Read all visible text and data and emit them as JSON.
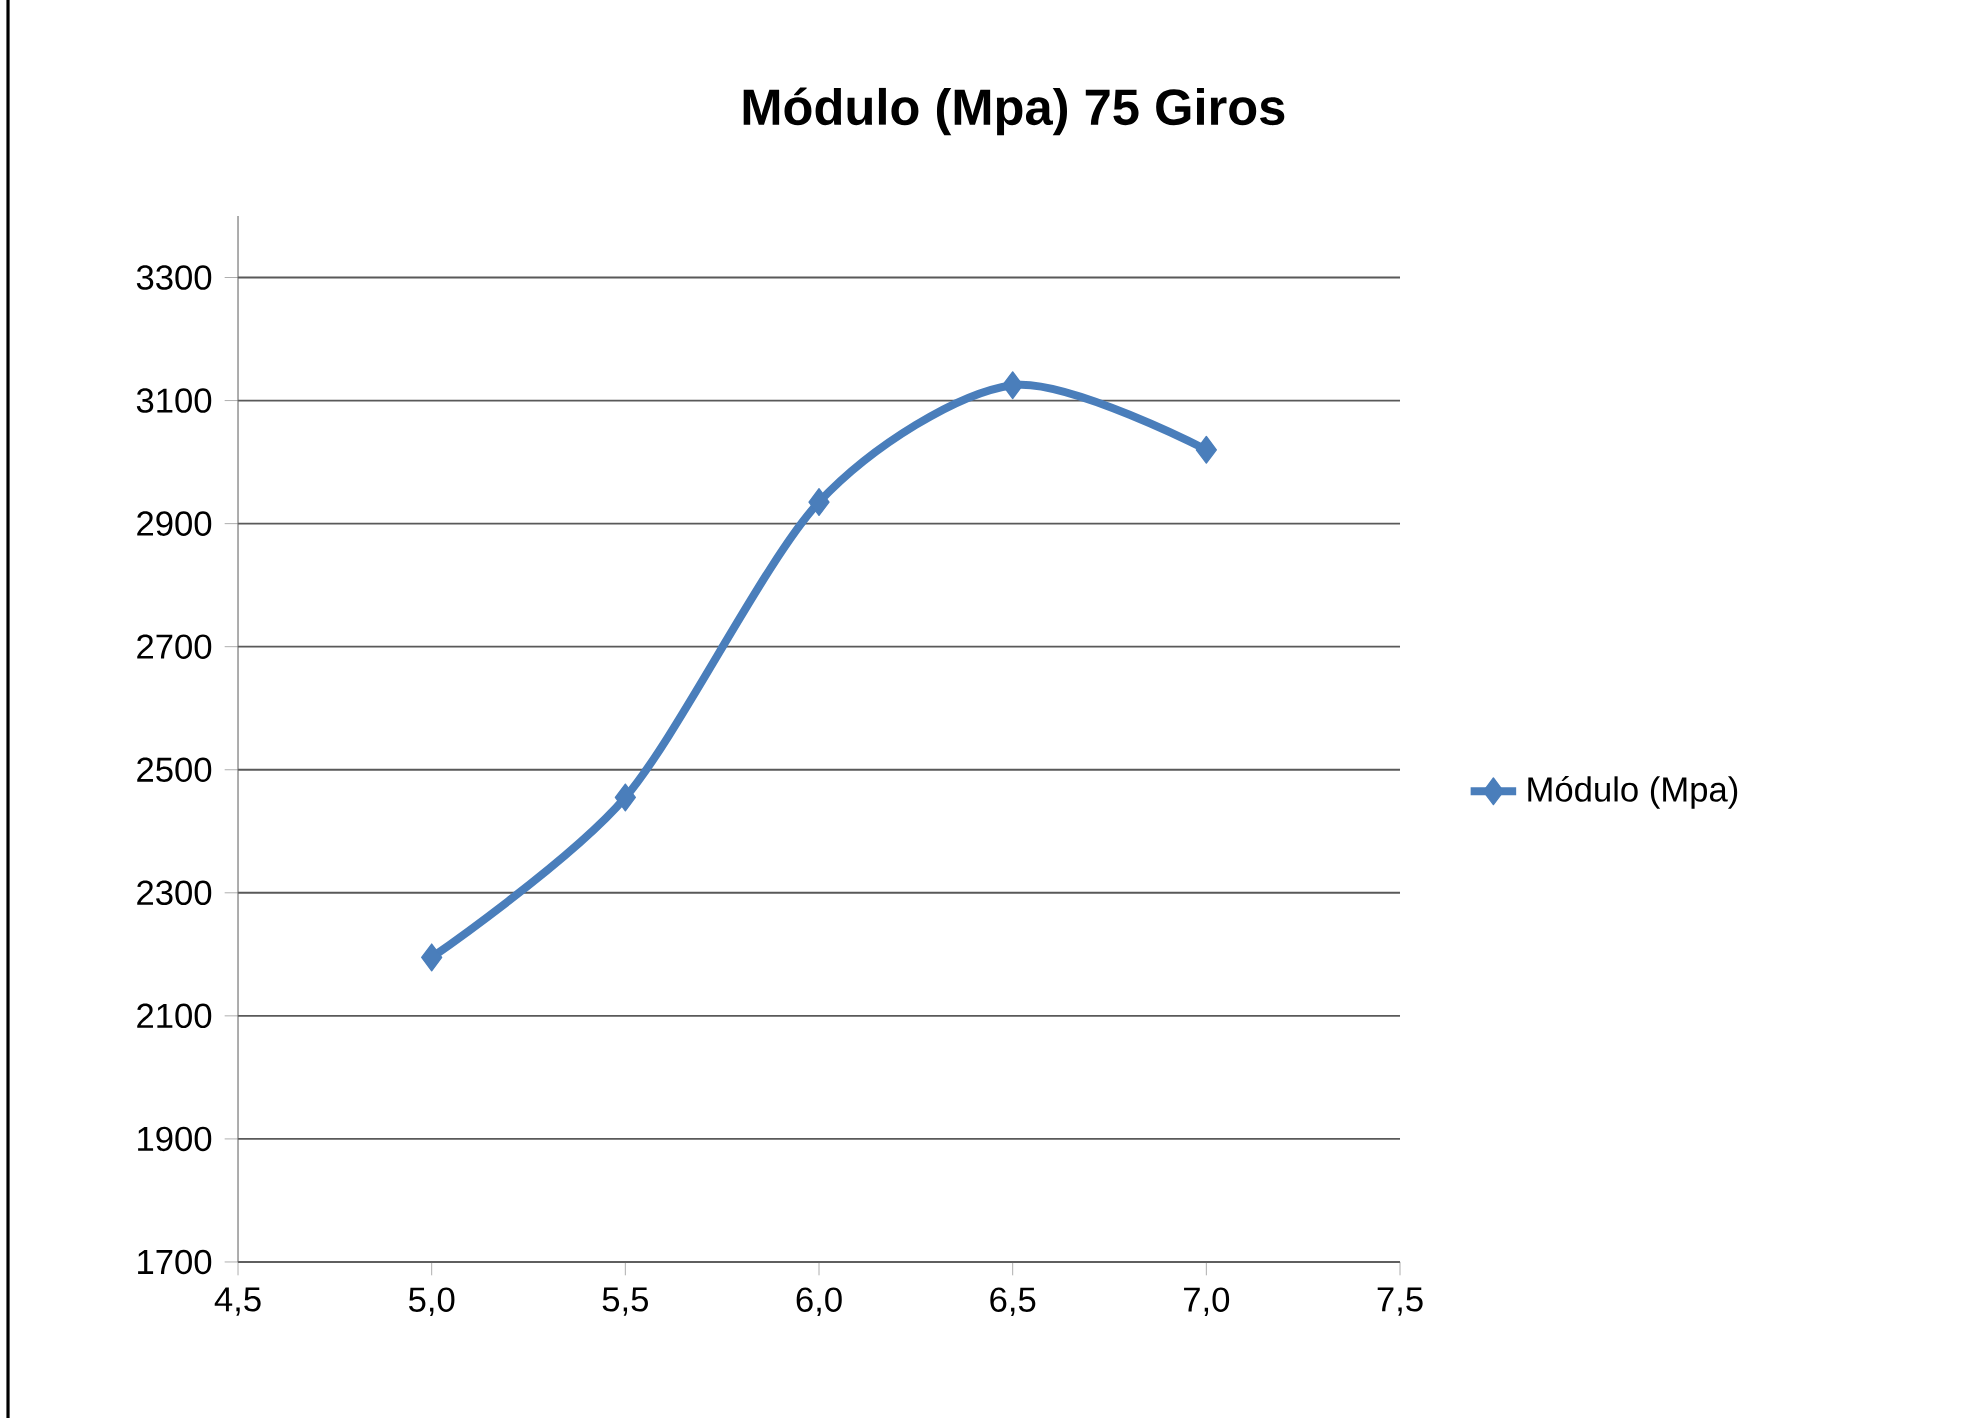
{
  "chart_data": {
    "type": "line",
    "title": "Módulo (Mpa) 75 Giros",
    "x": [
      5.0,
      5.5,
      6.0,
      6.5,
      7.0
    ],
    "series": [
      {
        "name": "Módulo (Mpa)",
        "color": "#4a7ebb",
        "values": [
          2195,
          2455,
          2935,
          3125,
          3020
        ]
      }
    ],
    "xlim": [
      4.5,
      7.5
    ],
    "xticks": [
      {
        "value": 4.5,
        "label": "4,5"
      },
      {
        "value": 5.0,
        "label": "5,0"
      },
      {
        "value": 5.5,
        "label": "5,5"
      },
      {
        "value": 6.0,
        "label": "6,0"
      },
      {
        "value": 6.5,
        "label": "6,5"
      },
      {
        "value": 7.0,
        "label": "7,0"
      },
      {
        "value": 7.5,
        "label": "7,5"
      }
    ],
    "ylim": [
      1700,
      3400
    ],
    "yticks": [
      1700,
      1900,
      2100,
      2300,
      2500,
      2700,
      2900,
      3100,
      3300
    ],
    "grid": "y",
    "legend": "right",
    "marker": "diamond",
    "line_style": "solid"
  }
}
